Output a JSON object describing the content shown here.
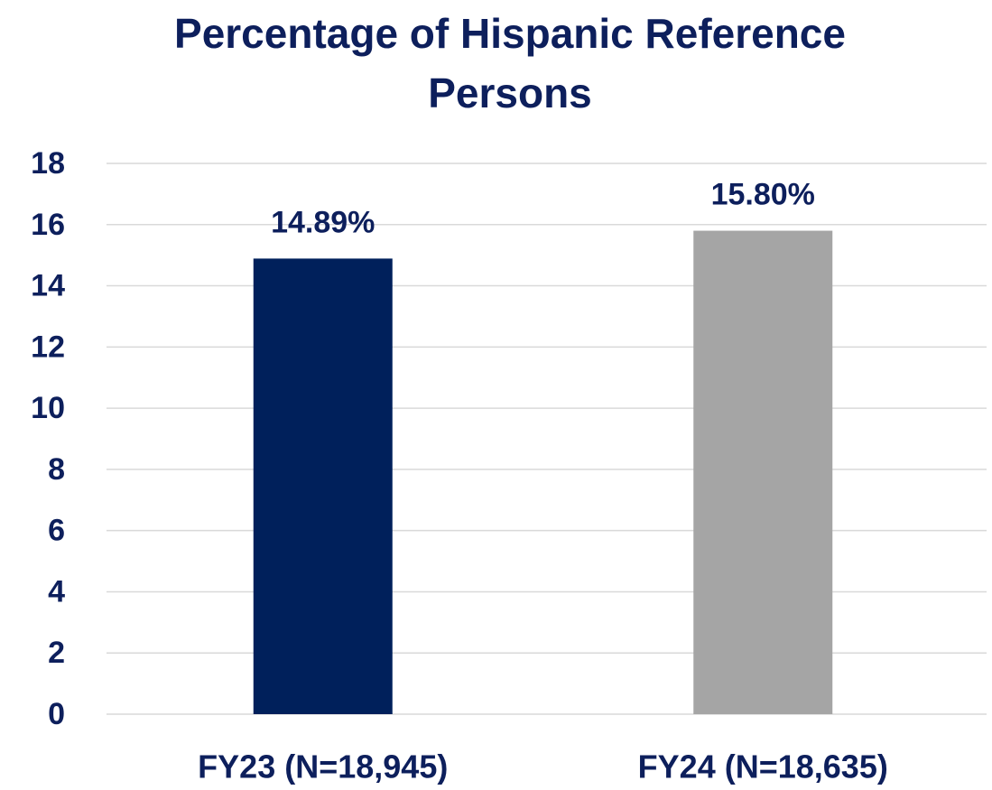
{
  "chart_data": {
    "type": "bar",
    "title": "Percentage of Hispanic Reference Persons",
    "categories": [
      "FY23 (N=18,945)",
      "FY24 (N=18,635)"
    ],
    "values": [
      14.89,
      15.8
    ],
    "value_labels": [
      "14.89%",
      "15.80%"
    ],
    "colors": [
      "#00205b",
      "#a5a5a5"
    ],
    "ylim": [
      0,
      18
    ],
    "yticks": [
      0,
      2,
      4,
      6,
      8,
      10,
      12,
      14,
      16,
      18
    ],
    "grid": true
  }
}
